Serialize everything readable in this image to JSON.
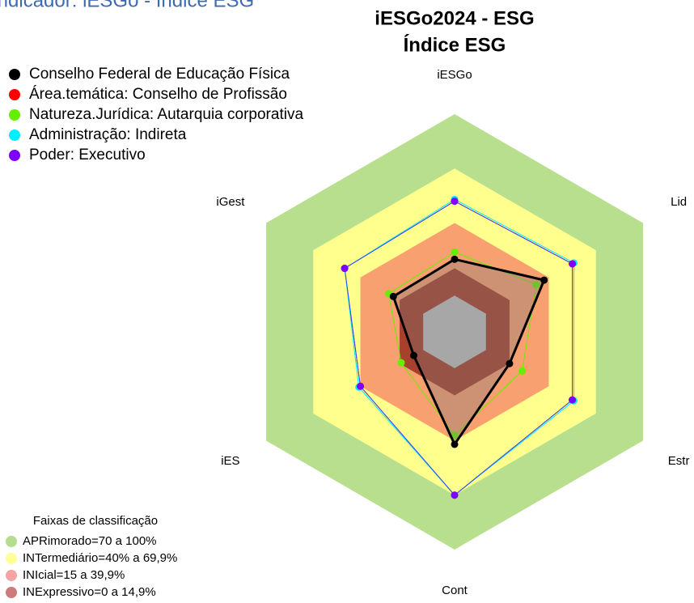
{
  "chart_data": {
    "type": "radar",
    "header": "Indicador: iESGo - Índice ESG",
    "title": "iESGo2024 - ESG",
    "subtitle": "Índice ESG",
    "categories": [
      "iESGo",
      "Lid",
      "Estr",
      "Cont",
      "iES",
      "iGest"
    ],
    "ylim": [
      -20,
      100
    ],
    "bands": [
      {
        "min": 70,
        "max": 100,
        "color": "#b8df8e"
      },
      {
        "min": 40,
        "max": 70,
        "color": "#ffff8e"
      },
      {
        "min": 15,
        "max": 40,
        "color": "#f9a070"
      },
      {
        "min": 0,
        "max": 15,
        "color": "#a8412c"
      },
      {
        "min": -20,
        "max": 0,
        "color": "#c0c0c0"
      }
    ],
    "series": [
      {
        "name": "Conselho Federal de Educação Física",
        "color": "#000000",
        "values": [
          20,
          37,
          15,
          42,
          6,
          19
        ]
      },
      {
        "name": "Área.temática: Conselho de Profissão",
        "color": "#ff0000",
        "values": [
          52,
          55,
          55,
          70,
          40,
          50
        ]
      },
      {
        "name": "Natureza.Jurídica: Autarquia corporativa",
        "color": "#66ee00",
        "values": [
          24,
          32,
          23,
          37,
          14,
          22
        ]
      },
      {
        "name": "Administração: Indireta",
        "color": "#00eeff",
        "values": [
          53,
          56,
          56,
          70,
          41,
          50
        ]
      },
      {
        "name": "Poder: Executivo",
        "color": "#7f00ff",
        "values": [
          52,
          55,
          55,
          70,
          40,
          50
        ]
      }
    ],
    "band_legend": {
      "title": "Faixas de classificação",
      "items": [
        {
          "label": "APRimorado=70 a 100%",
          "color": "#b5dd8f"
        },
        {
          "label": "INTermediário=40% a 69,9%",
          "color": "#ffff99"
        },
        {
          "label": "INIcial=15 a 39,9%",
          "color": "#f5a3a3"
        },
        {
          "label": "INExpressivo=0 a 14,9%",
          "color": "#cc7b7b"
        }
      ]
    }
  }
}
